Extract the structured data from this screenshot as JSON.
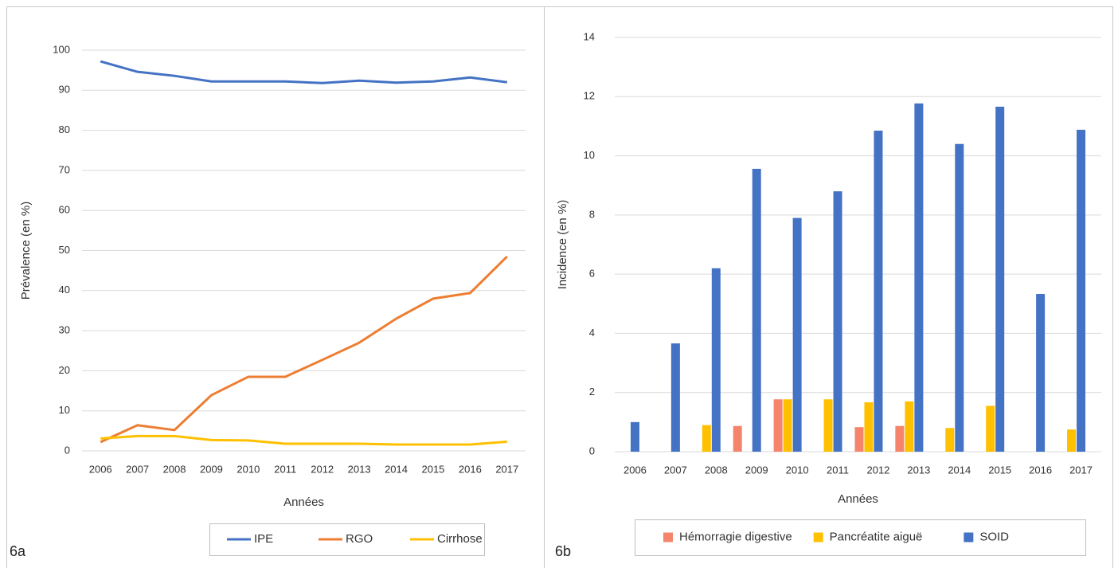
{
  "chart_data": [
    {
      "type": "line",
      "label": "6a",
      "xlabel": "Années",
      "ylabel": "Prévalence (en %)",
      "categories": [
        "2006",
        "2007",
        "2008",
        "2009",
        "2010",
        "2011",
        "2012",
        "2013",
        "2014",
        "2015",
        "2016",
        "2017"
      ],
      "series": [
        {
          "name": "IPE",
          "color": "#4472c4",
          "values": [
            97.2,
            94.6,
            93.6,
            92.2,
            92.2,
            92.2,
            91.8,
            92.4,
            91.9,
            92.2,
            93.2,
            92.0
          ]
        },
        {
          "name": "RGO",
          "color": "#ed7d31",
          "values": [
            2.2,
            6.4,
            5.2,
            13.9,
            18.5,
            18.5,
            22.7,
            27.0,
            33.0,
            38.0,
            39.4,
            48.5
          ]
        },
        {
          "name": "Cirrhose",
          "color": "#ffc000",
          "values": [
            3.1,
            3.7,
            3.7,
            2.7,
            2.6,
            1.8,
            1.8,
            1.8,
            1.6,
            1.6,
            1.6,
            2.3
          ]
        }
      ],
      "ylim": [
        0,
        100
      ],
      "yticks": [
        0,
        10,
        20,
        30,
        40,
        50,
        60,
        70,
        80,
        90,
        100
      ],
      "grid": true,
      "legend": "bottom"
    },
    {
      "type": "bar",
      "label": "6b",
      "xlabel": "Années",
      "ylabel": "Incidence (en %)",
      "categories": [
        "2006",
        "2007",
        "2008",
        "2009",
        "2010",
        "2011",
        "2012",
        "2013",
        "2014",
        "2015",
        "2016",
        "2017"
      ],
      "series": [
        {
          "name": "Hémorragie digestive",
          "color": "#f4856c",
          "values": [
            0,
            0,
            0,
            0.87,
            1.77,
            0,
            0.83,
            0.87,
            0,
            0,
            0,
            0
          ]
        },
        {
          "name": "Pancréatite aiguë",
          "color": "#ffc000",
          "values": [
            0,
            0,
            0.9,
            0,
            1.77,
            1.77,
            1.67,
            1.7,
            0.8,
            1.55,
            0,
            0.75
          ]
        },
        {
          "name": "SOID",
          "color": "#4472c4",
          "values": [
            1.0,
            3.66,
            6.2,
            9.56,
            7.9,
            8.8,
            10.85,
            11.77,
            10.4,
            11.66,
            5.33,
            10.88
          ]
        }
      ],
      "ylim": [
        0,
        14
      ],
      "yticks": [
        0,
        2,
        4,
        6,
        8,
        10,
        12,
        14
      ],
      "grid": true,
      "legend": "bottom"
    }
  ]
}
